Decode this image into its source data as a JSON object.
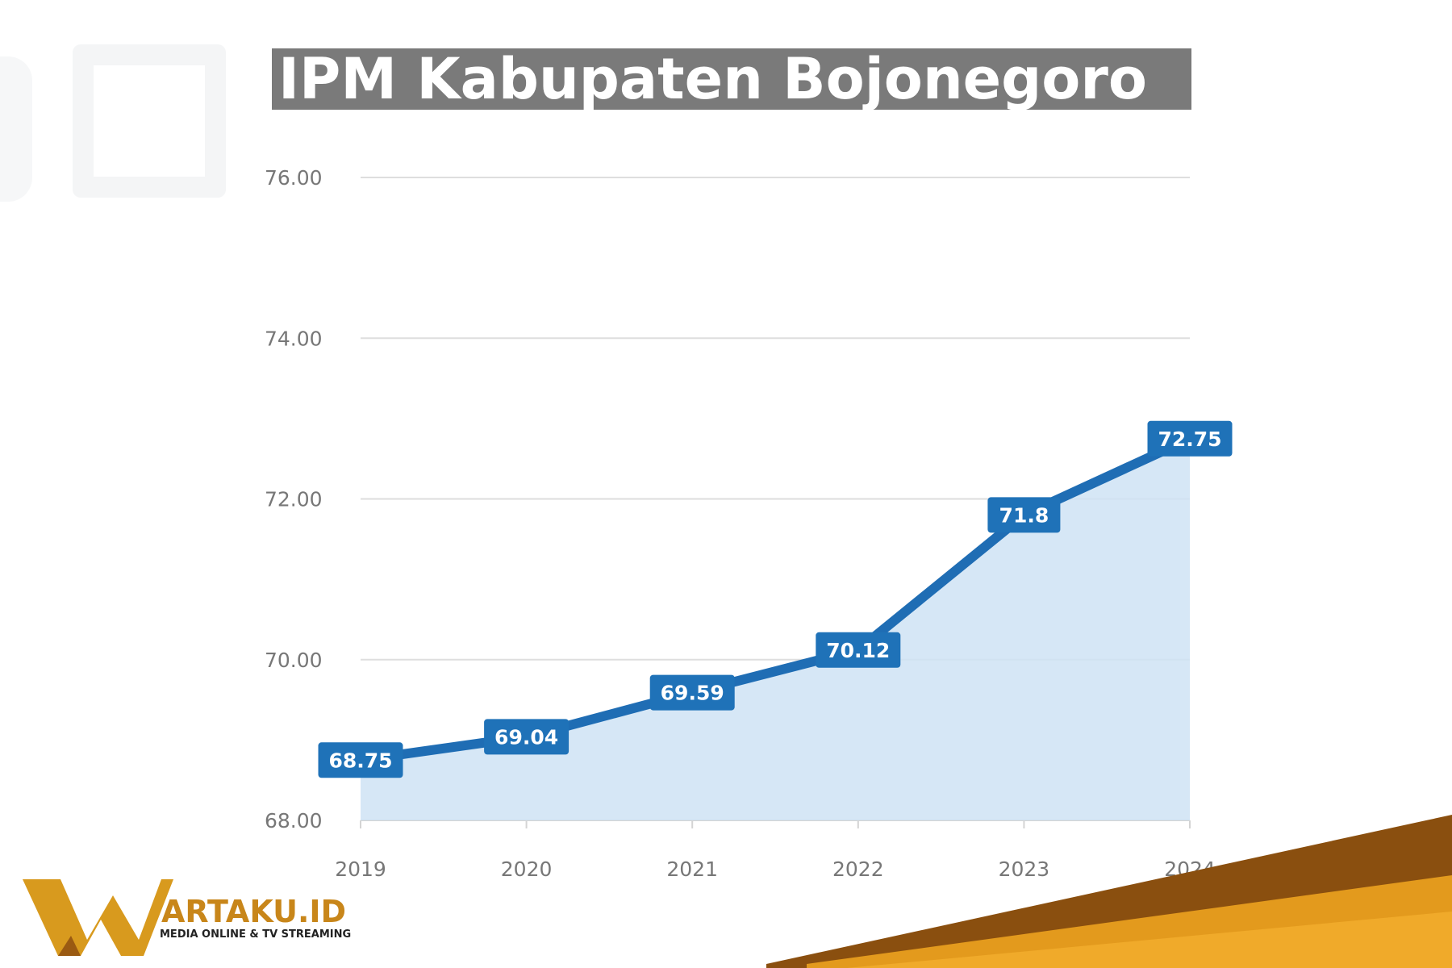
{
  "chart_data": {
    "type": "area",
    "title": "IPM Kabupaten Bojonegoro",
    "xlabel": "",
    "ylabel": "",
    "categories": [
      "2019",
      "2020",
      "2021",
      "2022",
      "2023",
      "2024"
    ],
    "series": [
      {
        "values": [
          68.75,
          69.04,
          69.59,
          70.12,
          71.8,
          72.75
        ]
      }
    ],
    "data_labels": [
      "68.75",
      "69.04",
      "69.59",
      "70.12",
      "71.8",
      "72.75"
    ],
    "y_ticks": [
      "68.00",
      "70.00",
      "72.00",
      "74.00",
      "76.00"
    ],
    "ylim": [
      68,
      76
    ],
    "grid": true,
    "colors": {
      "line": "#1f6db4",
      "area": "#cfe3f4",
      "label_bg": "#1f72b8"
    }
  },
  "logo": {
    "brand": "ARTAKU.ID",
    "tagline": "MEDIA ONLINE & TV STREAMING",
    "colors": {
      "gold": "#d89a1e",
      "brown": "#9a5a12"
    }
  }
}
